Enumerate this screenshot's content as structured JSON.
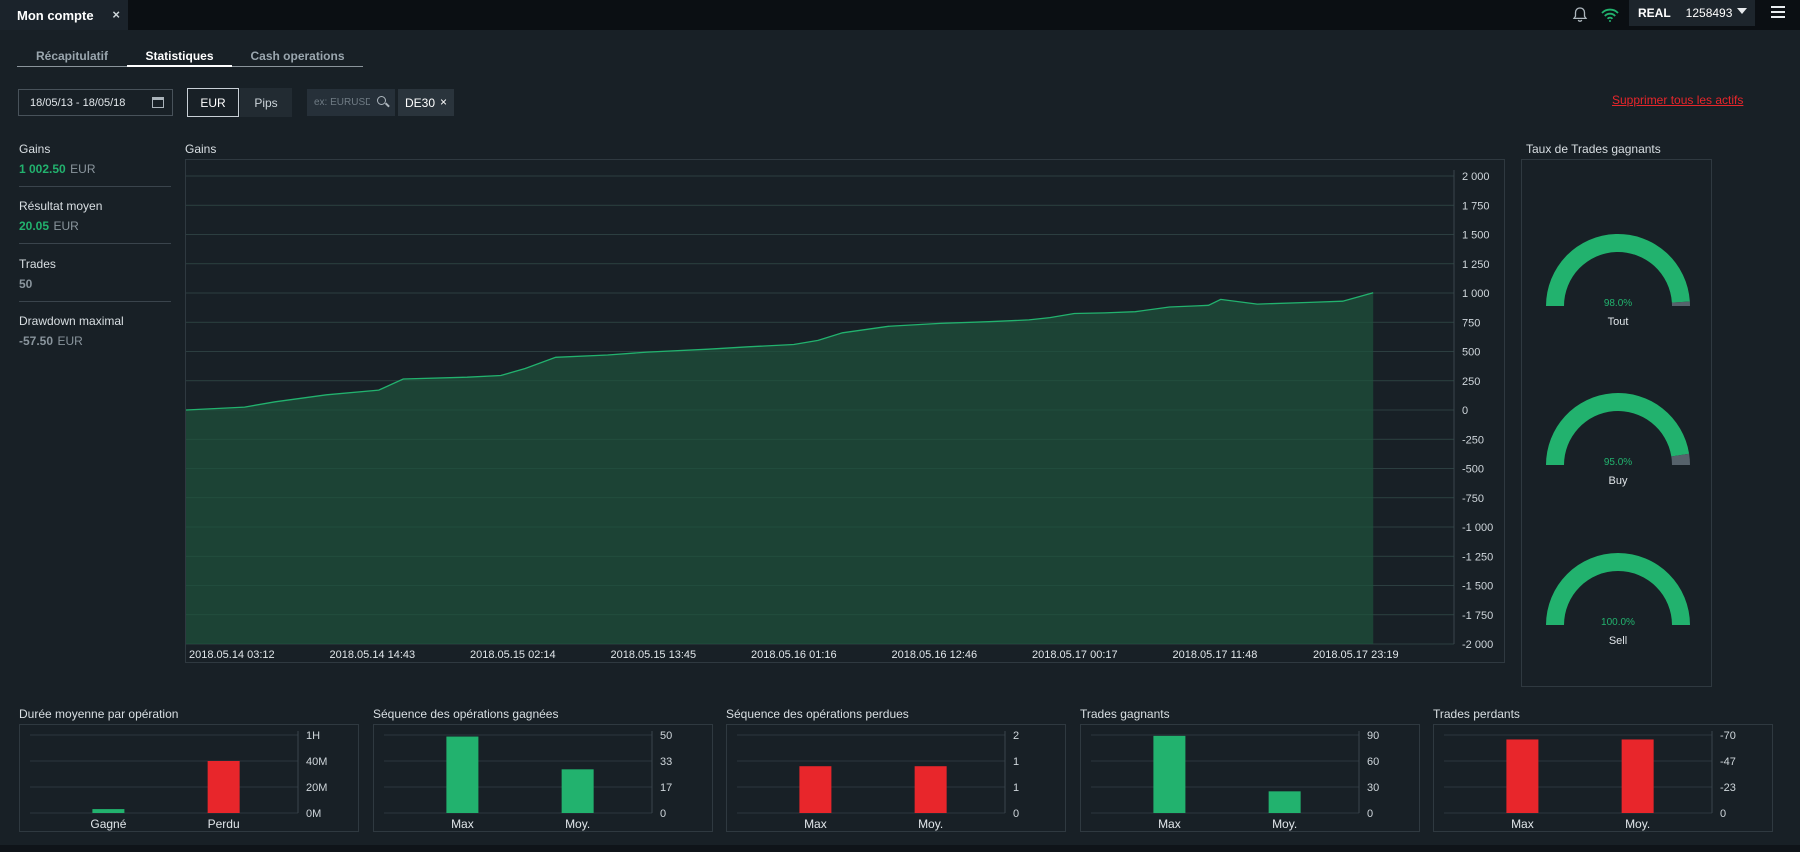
{
  "window": {
    "tab_title": "Mon compte",
    "close": "×"
  },
  "header": {
    "account_type": "REAL",
    "account_number": "1258493",
    "icons": [
      "bell-icon",
      "wifi-icon",
      "chevron-down-icon",
      "menu-icon"
    ]
  },
  "tabs": [
    {
      "label": "Récapitulatif"
    },
    {
      "label": "Statistiques"
    },
    {
      "label": "Cash operations"
    }
  ],
  "filters": {
    "date_range": "18/05/13 - 18/05/18",
    "currency_options": [
      "EUR",
      "Pips"
    ],
    "selected_currency": "EUR",
    "search_placeholder": "ex: EURUSD",
    "selected_asset": "DE30",
    "delete_all": "Supprimer tous les actifs"
  },
  "stats": [
    {
      "label": "Gains",
      "value": "1 002.50",
      "unit": "EUR",
      "color": "#22b26e"
    },
    {
      "label": "Résultat moyen",
      "value": "20.05",
      "unit": "EUR",
      "color": "#22b26e"
    },
    {
      "label": "Trades",
      "value": "50",
      "unit": "",
      "color": "#8a959d"
    },
    {
      "label": "Drawdown maximal",
      "value": "-57.50",
      "unit": "EUR",
      "color": "#8a959d"
    }
  ],
  "colors": {
    "green": "#22b26e",
    "red": "#e8262b",
    "area_fill": "#1d4a38",
    "grey_gauge": "#56626b"
  },
  "chart_data": [
    {
      "type": "area",
      "title": "Gains",
      "ylim": [
        -2000,
        2000
      ],
      "y_ticks": [
        "2 000",
        "1 750",
        "1 500",
        "1 250",
        "1 000",
        "750",
        "500",
        "250",
        "0",
        "-250",
        "-500",
        "-750",
        "-1 000",
        "-1 250",
        "-1 500",
        "-1 750",
        "-2 000"
      ],
      "x_ticks": [
        "2018.05.14 03:12",
        "2018.05.14 14:43",
        "2018.05.15 02:14",
        "2018.05.15 13:45",
        "2018.05.16 01:16",
        "2018.05.16 12:46",
        "2018.05.17 00:17",
        "2018.05.17 11:48",
        "2018.05.17 23:19"
      ],
      "grid": true,
      "legend": "none",
      "series": [
        {
          "x": [
            "2018.05.14 03:12",
            "2018.05.14 08:00",
            "2018.05.14 10:30",
            "2018.05.14 14:43",
            "2018.05.14 19:00",
            "2018.05.14 21:00",
            "2018.05.15 02:14",
            "2018.05.15 05:00",
            "2018.05.15 07:00",
            "2018.05.15 09:30",
            "2018.05.15 13:45",
            "2018.05.15 17:00",
            "2018.05.15 22:00",
            "2018.05.16 01:16",
            "2018.05.16 05:00",
            "2018.05.16 07:00",
            "2018.05.16 09:00",
            "2018.05.16 12:46",
            "2018.05.16 17:00",
            "2018.05.16 21:00",
            "2018.05.17 00:17",
            "2018.05.17 02:00",
            "2018.05.17 04:00",
            "2018.05.17 06:30",
            "2018.05.17 09:00",
            "2018.05.17 11:48",
            "2018.05.17 14:00",
            "2018.05.17 15:00",
            "2018.05.17 16:00",
            "2018.05.17 19:00",
            "2018.05.17 23:19",
            "2018.05.18 02:00",
            "2018.05.18 04:30"
          ],
          "values": [
            0,
            25,
            70,
            130,
            170,
            265,
            280,
            295,
            355,
            450,
            470,
            495,
            520,
            540,
            560,
            595,
            660,
            715,
            740,
            755,
            770,
            790,
            825,
            830,
            840,
            880,
            890,
            895,
            945,
            905,
            920,
            930,
            1002.5
          ]
        }
      ]
    },
    {
      "type": "gauge",
      "title": "Taux de Trades gagnants",
      "categories": [
        "Tout",
        "Buy",
        "Sell"
      ],
      "values": [
        98.0,
        95.0,
        100.0
      ],
      "labels": [
        "98.0%",
        "95.0%",
        "100.0%"
      ]
    },
    {
      "type": "bar",
      "title": "Durée moyenne par opération",
      "categories": [
        "Gagné",
        "Perdu"
      ],
      "values": [
        3,
        40
      ],
      "ylim": [
        0,
        60
      ],
      "y_ticks": [
        "1H",
        "40M",
        "20M",
        "0M"
      ],
      "colors": [
        "#22b26e",
        "#e8262b"
      ]
    },
    {
      "type": "bar",
      "title": "Séquence des opérations gagnées",
      "categories": [
        "Max",
        "Moy."
      ],
      "values": [
        49,
        28
      ],
      "ylim": [
        0,
        50
      ],
      "y_ticks": [
        "50",
        "33",
        "17",
        "0"
      ],
      "colors": [
        "#22b26e",
        "#22b26e"
      ]
    },
    {
      "type": "bar",
      "title": "Séquence des opérations perdues",
      "categories": [
        "Max",
        "Moy."
      ],
      "values": [
        1.2,
        1.2
      ],
      "ylim": [
        0,
        2
      ],
      "y_ticks": [
        "2",
        "1",
        "1",
        "0"
      ],
      "colors": [
        "#e8262b",
        "#e8262b"
      ]
    },
    {
      "type": "bar",
      "title": "Trades gagnants",
      "categories": [
        "Max",
        "Moy."
      ],
      "values": [
        89,
        25
      ],
      "ylim": [
        0,
        90
      ],
      "y_ticks": [
        "90",
        "60",
        "30",
        "0"
      ],
      "colors": [
        "#22b26e",
        "#22b26e"
      ]
    },
    {
      "type": "bar",
      "title": "Trades perdants",
      "categories": [
        "Max",
        "Moy."
      ],
      "values": [
        -66,
        -66
      ],
      "ylim": [
        0,
        -70
      ],
      "y_ticks": [
        "-70",
        "-47",
        "-23",
        "0"
      ],
      "colors": [
        "#e8262b",
        "#e8262b"
      ]
    }
  ]
}
